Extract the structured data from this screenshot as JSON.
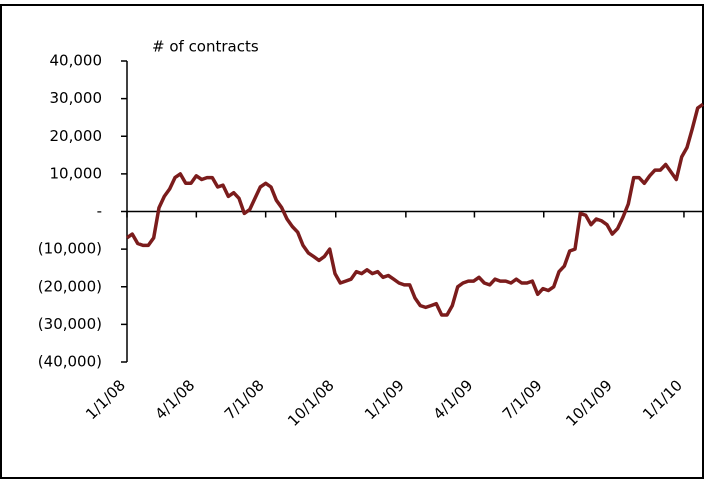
{
  "chart_data": {
    "type": "line",
    "annotation": "# of contracts",
    "x": [
      "2008-01-01",
      "2008-01-08",
      "2008-01-15",
      "2008-01-22",
      "2008-01-29",
      "2008-02-05",
      "2008-02-12",
      "2008-02-19",
      "2008-02-26",
      "2008-03-04",
      "2008-03-11",
      "2008-03-18",
      "2008-03-25",
      "2008-04-01",
      "2008-04-08",
      "2008-04-15",
      "2008-04-22",
      "2008-04-29",
      "2008-05-06",
      "2008-05-13",
      "2008-05-20",
      "2008-05-27",
      "2008-06-03",
      "2008-06-10",
      "2008-06-17",
      "2008-06-24",
      "2008-07-01",
      "2008-07-08",
      "2008-07-15",
      "2008-07-22",
      "2008-07-29",
      "2008-08-05",
      "2008-08-12",
      "2008-08-19",
      "2008-08-26",
      "2008-09-02",
      "2008-09-09",
      "2008-09-16",
      "2008-09-23",
      "2008-09-30",
      "2008-10-07",
      "2008-10-14",
      "2008-10-21",
      "2008-10-28",
      "2008-11-04",
      "2008-11-11",
      "2008-11-18",
      "2008-11-25",
      "2008-12-02",
      "2008-12-09",
      "2008-12-16",
      "2008-12-23",
      "2008-12-30",
      "2009-01-06",
      "2009-01-13",
      "2009-01-20",
      "2009-01-27",
      "2009-02-03",
      "2009-02-10",
      "2009-02-17",
      "2009-02-24",
      "2009-03-03",
      "2009-03-10",
      "2009-03-17",
      "2009-03-24",
      "2009-03-31",
      "2009-04-07",
      "2009-04-14",
      "2009-04-21",
      "2009-04-28",
      "2009-05-05",
      "2009-05-12",
      "2009-05-19",
      "2009-05-26",
      "2009-06-02",
      "2009-06-09",
      "2009-06-16",
      "2009-06-23",
      "2009-06-30",
      "2009-07-07",
      "2009-07-14",
      "2009-07-21",
      "2009-07-28",
      "2009-08-04",
      "2009-08-11",
      "2009-08-18",
      "2009-08-25",
      "2009-09-01",
      "2009-09-08",
      "2009-09-15",
      "2009-09-22",
      "2009-09-29",
      "2009-10-06",
      "2009-10-13",
      "2009-10-20",
      "2009-10-27",
      "2009-11-03",
      "2009-11-10",
      "2009-11-17",
      "2009-11-24",
      "2009-12-01",
      "2009-12-08",
      "2009-12-15",
      "2009-12-22",
      "2009-12-29",
      "2010-01-05",
      "2010-01-12",
      "2010-01-19",
      "2010-01-26"
    ],
    "series": [
      {
        "color": "#7b1c1c",
        "values": [
          -7000,
          -6000,
          -8500,
          -9000,
          -9000,
          -7000,
          1000,
          4000,
          6000,
          9000,
          10000,
          7500,
          7500,
          9500,
          8500,
          9000,
          9000,
          6500,
          7000,
          4000,
          5000,
          3500,
          -500,
          500,
          3500,
          6500,
          7500,
          6500,
          3000,
          1000,
          -2000,
          -4000,
          -5500,
          -9000,
          -11000,
          -12000,
          -13000,
          -12000,
          -10000,
          -16500,
          -19000,
          -18500,
          -18000,
          -16000,
          -16500,
          -15500,
          -16500,
          -16000,
          -17500,
          -17000,
          -18000,
          -19000,
          -19500,
          -19500,
          -23000,
          -25000,
          -25500,
          -25000,
          -24500,
          -27500,
          -27500,
          -25000,
          -20000,
          -19000,
          -18500,
          -18500,
          -17500,
          -19000,
          -19500,
          -18000,
          -18500,
          -18500,
          -19000,
          -18000,
          -19000,
          -19000,
          -18500,
          -22000,
          -20500,
          -21000,
          -20000,
          -16000,
          -14500,
          -10500,
          -10000,
          -500,
          -1000,
          -3500,
          -2000,
          -2500,
          -3500,
          -6000,
          -4500,
          -1500,
          2000,
          9000,
          9000,
          7500,
          9500,
          11000,
          11000,
          12500,
          10500,
          8500,
          14500,
          17000,
          22000,
          27500,
          28500
        ]
      }
    ],
    "xlim": [
      "2008-01-01",
      "2010-01-26"
    ],
    "xticks": [
      {
        "value": "2008-01-01",
        "label": "1/1/08"
      },
      {
        "value": "2008-04-01",
        "label": "4/1/08"
      },
      {
        "value": "2008-07-01",
        "label": "7/1/08"
      },
      {
        "value": "2008-10-01",
        "label": "10/1/08"
      },
      {
        "value": "2009-01-01",
        "label": "1/1/09"
      },
      {
        "value": "2009-04-01",
        "label": "4/1/09"
      },
      {
        "value": "2009-07-01",
        "label": "7/1/09"
      },
      {
        "value": "2009-10-01",
        "label": "10/1/09"
      },
      {
        "value": "2010-01-01",
        "label": "1/1/10"
      }
    ],
    "ylim": [
      -40000,
      40000
    ],
    "yticks": [
      {
        "value": 40000,
        "label": "40,000"
      },
      {
        "value": 30000,
        "label": "30,000"
      },
      {
        "value": 20000,
        "label": "20,000"
      },
      {
        "value": 10000,
        "label": "10,000"
      },
      {
        "value": 0,
        "label": "-"
      },
      {
        "value": -10000,
        "label": "(10,000)"
      },
      {
        "value": -20000,
        "label": "(20,000)"
      },
      {
        "value": -30000,
        "label": "(30,000)"
      },
      {
        "value": -40000,
        "label": "(40,000)"
      }
    ]
  }
}
